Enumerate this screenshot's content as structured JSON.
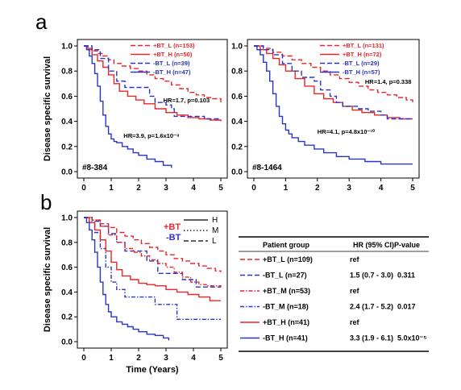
{
  "colors": {
    "red": "#e8262a",
    "blue": "#2a34c8",
    "black": "#000000"
  },
  "chart_data": [
    {
      "type": "line",
      "panel": "a",
      "plot_id": "#8-384",
      "ylabel": "Disease specific survival",
      "xlabel": "",
      "xlim": [
        0,
        5
      ],
      "ylim": [
        0,
        1
      ],
      "xticks": [
        "0",
        "1",
        "2",
        "3",
        "4",
        "5"
      ],
      "yticks": [
        "0.0",
        "0.2",
        "0.4",
        "0.6",
        "0.8",
        "1.0"
      ],
      "legend_position": "top-right",
      "annotations": [
        {
          "text": "HR=1.7, p=0.103",
          "x": 2.9,
          "y": 0.55
        },
        {
          "text": "HR=3.9, p=1.6x10⁻⁸",
          "x": 1.45,
          "y": 0.27
        }
      ],
      "series": [
        {
          "name": "+BT_L (n=153)",
          "color": "red",
          "dash": "dash",
          "x": [
            0,
            0.15,
            0.3,
            0.5,
            0.7,
            0.9,
            1.1,
            1.4,
            1.7,
            2.0,
            2.3,
            2.6,
            2.9,
            3.2,
            3.5,
            3.8,
            4.1,
            4.4,
            4.7,
            5.0
          ],
          "y": [
            1.0,
            0.98,
            0.96,
            0.94,
            0.92,
            0.89,
            0.86,
            0.84,
            0.82,
            0.8,
            0.77,
            0.74,
            0.72,
            0.69,
            0.66,
            0.63,
            0.61,
            0.59,
            0.58,
            0.55
          ]
        },
        {
          "name": "+BT_H (n=50)",
          "color": "red",
          "dash": "solid",
          "x": [
            0,
            0.15,
            0.3,
            0.5,
            0.7,
            0.9,
            1.1,
            1.3,
            1.6,
            1.9,
            2.2,
            2.6,
            3.0,
            3.4,
            3.8,
            4.2,
            4.6,
            5.0
          ],
          "y": [
            1.0,
            0.97,
            0.93,
            0.88,
            0.83,
            0.77,
            0.7,
            0.64,
            0.6,
            0.57,
            0.54,
            0.5,
            0.47,
            0.45,
            0.43,
            0.42,
            0.41,
            0.4
          ]
        },
        {
          "name": "-BT_L (n=39)",
          "color": "blue",
          "dash": "dash",
          "x": [
            0,
            0.3,
            0.6,
            0.9,
            1.2,
            1.5,
            2.3,
            2.4,
            2.6,
            3.0,
            3.2,
            3.3,
            4.3,
            4.4,
            5.0
          ],
          "y": [
            1.0,
            0.97,
            0.9,
            0.8,
            0.72,
            0.67,
            0.67,
            0.6,
            0.55,
            0.53,
            0.5,
            0.44,
            0.44,
            0.42,
            0.42
          ]
        },
        {
          "name": "-BT_H (n=47)",
          "color": "blue",
          "dash": "solid",
          "x": [
            0,
            0.1,
            0.2,
            0.3,
            0.4,
            0.5,
            0.6,
            0.7,
            0.8,
            0.9,
            1.0,
            1.1,
            1.2,
            1.4,
            1.6,
            1.8,
            2.0,
            2.3,
            2.6,
            2.9,
            3.2
          ],
          "y": [
            1.0,
            0.97,
            0.92,
            0.86,
            0.78,
            0.68,
            0.56,
            0.45,
            0.36,
            0.3,
            0.26,
            0.24,
            0.23,
            0.2,
            0.18,
            0.15,
            0.13,
            0.1,
            0.08,
            0.05,
            0.03
          ]
        }
      ]
    },
    {
      "type": "line",
      "panel": "a",
      "plot_id": "#8-1464",
      "ylabel": "",
      "xlabel": "",
      "xlim": [
        0,
        5
      ],
      "ylim": [
        0,
        1
      ],
      "xticks": [
        "0",
        "1",
        "2",
        "3",
        "4",
        "5"
      ],
      "yticks": [
        "0.0",
        "0.2",
        "0.4",
        "0.6",
        "0.8",
        "1.0"
      ],
      "legend_position": "top-right",
      "annotations": [
        {
          "text": "HR=1.4, p=0.338",
          "x": 3.5,
          "y": 0.7
        },
        {
          "text": "HR=4.1, p=4.8x10⁻¹⁰",
          "x": 2.0,
          "y": 0.3
        }
      ],
      "series": [
        {
          "name": "+BT_L (n=131)",
          "color": "red",
          "dash": "dash",
          "x": [
            0,
            0.3,
            0.6,
            0.9,
            1.2,
            1.5,
            1.8,
            2.1,
            2.4,
            2.7,
            3.0,
            3.3,
            3.6,
            3.9,
            4.2,
            4.5,
            4.8,
            5.0
          ],
          "y": [
            1.0,
            0.98,
            0.95,
            0.92,
            0.89,
            0.86,
            0.83,
            0.8,
            0.77,
            0.74,
            0.71,
            0.68,
            0.65,
            0.63,
            0.61,
            0.59,
            0.57,
            0.55
          ]
        },
        {
          "name": "+BT_H (n=72)",
          "color": "red",
          "dash": "solid",
          "x": [
            0,
            0.2,
            0.4,
            0.6,
            0.8,
            1.0,
            1.3,
            1.6,
            1.9,
            2.2,
            2.5,
            2.8,
            3.1,
            3.4,
            3.8,
            4.2,
            4.6,
            5.0
          ],
          "y": [
            1.0,
            0.97,
            0.94,
            0.9,
            0.85,
            0.8,
            0.74,
            0.68,
            0.62,
            0.58,
            0.55,
            0.52,
            0.49,
            0.47,
            0.45,
            0.43,
            0.42,
            0.42
          ]
        },
        {
          "name": "-BT_L (n=29)",
          "color": "blue",
          "dash": "dash",
          "x": [
            0,
            0.3,
            0.6,
            0.9,
            1.2,
            1.5,
            1.9,
            2.1,
            2.4,
            2.6,
            2.8,
            3.3,
            3.6,
            4.0,
            4.2,
            5.0
          ],
          "y": [
            1.0,
            0.97,
            0.93,
            0.86,
            0.8,
            0.75,
            0.72,
            0.65,
            0.6,
            0.55,
            0.52,
            0.5,
            0.48,
            0.45,
            0.42,
            0.42
          ]
        },
        {
          "name": "-BT_H (n=57)",
          "color": "blue",
          "dash": "solid",
          "x": [
            0,
            0.1,
            0.2,
            0.3,
            0.4,
            0.5,
            0.6,
            0.7,
            0.8,
            0.9,
            1.0,
            1.1,
            1.2,
            1.4,
            1.6,
            1.9,
            2.2,
            2.6,
            3.0,
            3.5,
            4.0,
            4.5,
            5.0
          ],
          "y": [
            1.0,
            0.97,
            0.93,
            0.87,
            0.8,
            0.72,
            0.62,
            0.52,
            0.44,
            0.38,
            0.33,
            0.3,
            0.27,
            0.24,
            0.21,
            0.18,
            0.15,
            0.12,
            0.1,
            0.08,
            0.06,
            0.06,
            0.06
          ]
        }
      ]
    },
    {
      "type": "line",
      "panel": "b",
      "plot_id": "",
      "ylabel": "Disease specific survival",
      "xlabel": "Time (Years)",
      "xlim": [
        0,
        5
      ],
      "ylim": [
        0,
        1
      ],
      "xticks": [
        "0",
        "1",
        "2",
        "3",
        "4",
        "5"
      ],
      "yticks": [
        "0.0",
        "0.2",
        "0.4",
        "0.6",
        "0.8",
        "1.0"
      ],
      "group_legend": {
        "plus": "+BT",
        "minus": "-BT"
      },
      "style_legend": [
        {
          "label": "H",
          "dash": "solid"
        },
        {
          "label": "M",
          "dash": "dot"
        },
        {
          "label": "L",
          "dash": "dash"
        }
      ],
      "series": [
        {
          "name": "+BT_L (n=109)",
          "color": "red",
          "dash": "dash",
          "x": [
            0,
            0.3,
            0.6,
            0.9,
            1.2,
            1.5,
            1.8,
            2.1,
            2.4,
            2.7,
            3.0,
            3.3,
            3.6,
            3.9,
            4.2,
            4.5,
            4.8,
            5.0
          ],
          "y": [
            1.0,
            0.98,
            0.95,
            0.92,
            0.88,
            0.85,
            0.82,
            0.79,
            0.76,
            0.73,
            0.7,
            0.67,
            0.65,
            0.63,
            0.61,
            0.59,
            0.57,
            0.56
          ]
        },
        {
          "name": "-BT_L (n=27)",
          "color": "blue",
          "dash": "dash",
          "x": [
            0,
            0.3,
            0.6,
            0.9,
            1.2,
            1.5,
            2.1,
            2.3,
            2.7,
            3.4,
            3.6,
            4.0,
            4.1,
            5.0
          ],
          "y": [
            1.0,
            0.97,
            0.93,
            0.87,
            0.8,
            0.73,
            0.73,
            0.65,
            0.55,
            0.55,
            0.5,
            0.5,
            0.44,
            0.44
          ]
        },
        {
          "name": "+BT_M (n=53)",
          "color": "red",
          "dash": "dashdot",
          "x": [
            0,
            0.3,
            0.6,
            0.9,
            1.2,
            1.5,
            1.8,
            2.1,
            2.4,
            2.7,
            3.0,
            3.3,
            3.6,
            3.9,
            4.2,
            4.5,
            5.0
          ],
          "y": [
            1.0,
            0.98,
            0.93,
            0.86,
            0.8,
            0.75,
            0.72,
            0.69,
            0.66,
            0.63,
            0.6,
            0.56,
            0.52,
            0.48,
            0.46,
            0.45,
            0.44
          ]
        },
        {
          "name": "-BT_M (n=18)",
          "color": "blue",
          "dash": "dashdot",
          "x": [
            0,
            0.2,
            0.4,
            0.6,
            0.8,
            1.0,
            1.2,
            1.5,
            1.8,
            2.2,
            2.6,
            3.0,
            3.4,
            3.8,
            4.2,
            5.0
          ],
          "y": [
            1.0,
            0.96,
            0.88,
            0.75,
            0.6,
            0.48,
            0.42,
            0.36,
            0.36,
            0.36,
            0.3,
            0.3,
            0.18,
            0.18,
            0.18,
            0.18
          ]
        },
        {
          "name": "+BT_H (n=41)",
          "color": "red",
          "dash": "solid",
          "x": [
            0,
            0.2,
            0.4,
            0.6,
            0.8,
            1.0,
            1.2,
            1.4,
            1.7,
            2.0,
            2.3,
            2.6,
            3.0,
            3.4,
            3.8,
            4.2,
            4.6,
            5.0
          ],
          "y": [
            1.0,
            0.96,
            0.9,
            0.82,
            0.73,
            0.64,
            0.58,
            0.53,
            0.5,
            0.47,
            0.46,
            0.45,
            0.42,
            0.4,
            0.38,
            0.36,
            0.33,
            0.33
          ]
        },
        {
          "name": "-BT_H (n=41)",
          "color": "blue",
          "dash": "solid",
          "x": [
            0,
            0.1,
            0.2,
            0.3,
            0.4,
            0.5,
            0.6,
            0.7,
            0.8,
            0.9,
            1.0,
            1.2,
            1.4,
            1.6,
            1.8,
            2.0,
            2.3,
            2.6,
            2.9,
            3.1
          ],
          "y": [
            1.0,
            0.96,
            0.9,
            0.82,
            0.72,
            0.6,
            0.48,
            0.38,
            0.3,
            0.24,
            0.2,
            0.16,
            0.14,
            0.12,
            0.1,
            0.08,
            0.06,
            0.05,
            0.03,
            0.01
          ]
        }
      ]
    }
  ],
  "panel_labels": {
    "a": "a",
    "b": "b"
  },
  "table": {
    "headers": [
      "Patient group",
      "HR (95% CI)",
      "P-value"
    ],
    "rows": [
      {
        "group": "+BT_L (n=109)",
        "color": "red",
        "dash": "dash",
        "hr": "ref",
        "p": ""
      },
      {
        "group": "-BT_L (n=27)",
        "color": "blue",
        "dash": "dash",
        "hr": "1.5 (0.7 - 3.0)",
        "p": "0.311"
      },
      {
        "group": "+BT_M (n=53)",
        "color": "red",
        "dash": "dashdot",
        "hr": "ref",
        "p": ""
      },
      {
        "group": "-BT_M (n=18)",
        "color": "blue",
        "dash": "dashdot",
        "hr": "2.4 (1.7 - 5.2)",
        "p": "0.017"
      },
      {
        "group": "+BT_H (n=41)",
        "color": "red",
        "dash": "solid",
        "hr": "ref",
        "p": ""
      },
      {
        "group": "-BT_H (n=41)",
        "color": "blue",
        "dash": "solid",
        "hr": "3.3 (1.9 - 6.1)",
        "p": "5.0x10⁻⁵"
      }
    ]
  }
}
